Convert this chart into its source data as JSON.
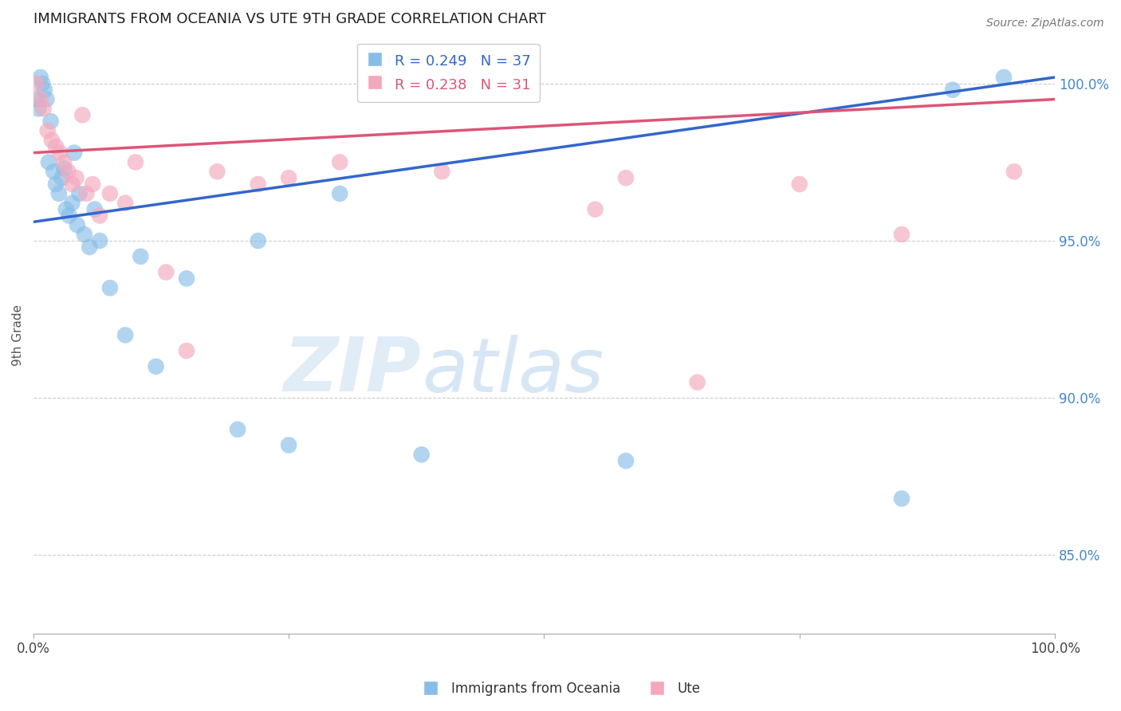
{
  "title": "IMMIGRANTS FROM OCEANIA VS UTE 9TH GRADE CORRELATION CHART",
  "source": "Source: ZipAtlas.com",
  "ylabel": "9th Grade",
  "xmin": 0.0,
  "xmax": 100.0,
  "ymin": 82.5,
  "ymax": 101.5,
  "yticks": [
    85.0,
    90.0,
    95.0,
    100.0
  ],
  "ytick_labels": [
    "85.0%",
    "90.0%",
    "95.0%",
    "100.0%"
  ],
  "blue_label": "Immigrants from Oceania",
  "pink_label": "Ute",
  "blue_R": 0.249,
  "blue_N": 37,
  "pink_R": 0.238,
  "pink_N": 31,
  "blue_color": "#88bde8",
  "pink_color": "#f4a8bc",
  "blue_line_color": "#3366cc",
  "pink_line_color": "#dd5577",
  "right_tick_color": "#4488cc",
  "blue_line_x0": 0.0,
  "blue_line_y0": 95.6,
  "blue_line_x1": 100.0,
  "blue_line_y1": 100.2,
  "pink_line_x0": 0.0,
  "pink_line_y0": 97.8,
  "pink_line_x1": 100.0,
  "pink_line_y1": 99.5,
  "blue_x": [
    0.3,
    0.5,
    0.7,
    0.9,
    1.1,
    1.3,
    1.5,
    1.7,
    2.0,
    2.2,
    2.5,
    2.8,
    3.0,
    3.2,
    3.5,
    3.8,
    4.0,
    4.3,
    4.5,
    5.0,
    5.5,
    6.0,
    6.5,
    7.5,
    9.0,
    10.5,
    12.0,
    15.0,
    20.0,
    22.0,
    25.0,
    30.0,
    38.0,
    58.0,
    85.0,
    90.0,
    95.0
  ],
  "blue_y": [
    99.5,
    99.2,
    100.2,
    100.0,
    99.8,
    99.5,
    97.5,
    98.8,
    97.2,
    96.8,
    96.5,
    97.0,
    97.3,
    96.0,
    95.8,
    96.2,
    97.8,
    95.5,
    96.5,
    95.2,
    94.8,
    96.0,
    95.0,
    93.5,
    92.0,
    94.5,
    91.0,
    93.8,
    89.0,
    95.0,
    88.5,
    96.5,
    88.2,
    88.0,
    86.8,
    99.8,
    100.2
  ],
  "pink_x": [
    0.3,
    0.7,
    1.0,
    1.4,
    1.8,
    2.2,
    2.6,
    3.0,
    3.4,
    3.8,
    4.2,
    4.8,
    5.2,
    5.8,
    6.5,
    7.5,
    9.0,
    10.0,
    13.0,
    15.0,
    18.0,
    22.0,
    25.0,
    30.0,
    40.0,
    55.0,
    58.0,
    65.0,
    75.0,
    85.0,
    96.0
  ],
  "pink_y": [
    100.0,
    99.5,
    99.2,
    98.5,
    98.2,
    98.0,
    97.8,
    97.5,
    97.2,
    96.8,
    97.0,
    99.0,
    96.5,
    96.8,
    95.8,
    96.5,
    96.2,
    97.5,
    94.0,
    91.5,
    97.2,
    96.8,
    97.0,
    97.5,
    97.2,
    96.0,
    97.0,
    90.5,
    96.8,
    95.2,
    97.2
  ]
}
